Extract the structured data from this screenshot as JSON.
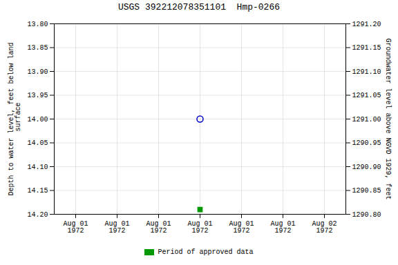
{
  "chart_data": {
    "type": "scatter",
    "title": "USGS 392212078351101  Hmp-0266",
    "ylabel": "Depth to water level, feet below land\n surface",
    "y2label": "Groundwater level above NGVD 1929, feet",
    "categories": [
      "Aug 01\n1972",
      "Aug 01\n1972",
      "Aug 01\n1972",
      "Aug 01\n1972",
      "Aug 01\n1972",
      "Aug 01\n1972",
      "Aug 02\n1972"
    ],
    "series": [
      {
        "color": "#0000cc",
        "marker": "circle_open",
        "values": [
          null,
          null,
          null,
          14.0,
          null,
          null,
          null
        ]
      },
      {
        "name": "Period of approved data",
        "color": "#009900",
        "marker": "square",
        "values": [
          null,
          null,
          null,
          14.19,
          null,
          null,
          null
        ]
      }
    ],
    "ylim": [
      14.2,
      13.8
    ],
    "yticks": [
      {
        "value": 13.8,
        "label": "13.80"
      },
      {
        "value": 13.85,
        "label": "13.85"
      },
      {
        "value": 13.9,
        "label": "13.90"
      },
      {
        "value": 13.95,
        "label": "13.95"
      },
      {
        "value": 14.0,
        "label": "14.00"
      },
      {
        "value": 14.05,
        "label": "14.05"
      },
      {
        "value": 14.1,
        "label": "14.10"
      },
      {
        "value": 14.15,
        "label": "14.15"
      },
      {
        "value": 14.2,
        "label": "14.20"
      }
    ],
    "y2lim": [
      1290.8,
      1291.2
    ],
    "y2ticks": [
      {
        "value": 1291.2,
        "label": "1291.20"
      },
      {
        "value": 1291.15,
        "label": "1291.15"
      },
      {
        "value": 1291.1,
        "label": "1291.10"
      },
      {
        "value": 1291.05,
        "label": "1291.05"
      },
      {
        "value": 1291.0,
        "label": "1291.00"
      },
      {
        "value": 1290.95,
        "label": "1290.95"
      },
      {
        "value": 1290.9,
        "label": "1290.90"
      },
      {
        "value": 1290.85,
        "label": "1290.85"
      },
      {
        "value": 1290.8,
        "label": "1290.80"
      }
    ],
    "grid": true,
    "legend": "bottom"
  }
}
